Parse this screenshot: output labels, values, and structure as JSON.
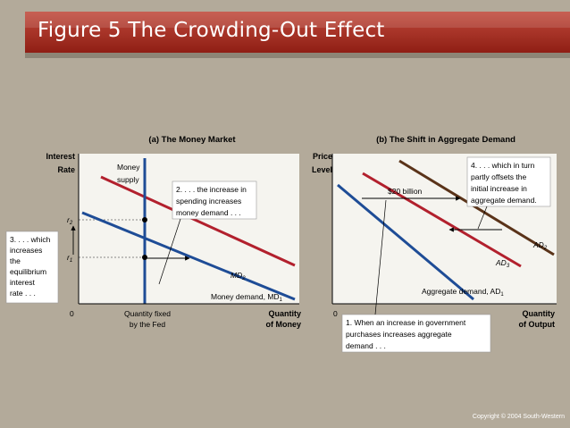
{
  "slide": {
    "title": "Figure 5 The Crowding-Out Effect",
    "copyright": "Copyright © 2004 South-Western"
  },
  "panel_a": {
    "title": "(a) The Money Market",
    "y_label_line1": "Interest",
    "y_label_line2": "Rate",
    "x_label_line1": "Quantity",
    "x_label_line2": "of Money",
    "origin": "0",
    "r2": "r",
    "r2_sub": "2",
    "r1": "r",
    "r1_sub": "1",
    "money_supply_line1": "Money",
    "money_supply_line2": "supply",
    "quantity_fixed_line1": "Quantity fixed",
    "quantity_fixed_line2": "by the Fed",
    "md1_label": "Money demand, MD",
    "md1_sub": "1",
    "md2_label": "MD",
    "md2_sub": "2",
    "callout2_lines": [
      "2. . . . the increase in",
      "spending increases",
      "money demand . . ."
    ],
    "callout3_lines": [
      "3. . . . which",
      "increases",
      "the",
      "equilibrium",
      "interest",
      "rate . . ."
    ],
    "colors": {
      "money_supply": "#1e4c96",
      "md1": "#1e4c96",
      "md2": "#b2202d"
    }
  },
  "panel_b": {
    "title": "(b) The Shift in Aggregate Demand",
    "y_label_line1": "Price",
    "y_label_line2": "Level",
    "x_label_line1": "Quantity",
    "x_label_line2": "of Output",
    "origin": "0",
    "twenty_billion": "$20 billion",
    "ad1_label": "Aggregate demand, AD",
    "ad1_sub": "1",
    "ad2_label": "AD",
    "ad2_sub": "2",
    "ad3_label": "AD",
    "ad3_sub": "3",
    "callout1_lines": [
      "1. When an increase in government",
      "purchases increases aggregate",
      "demand . . ."
    ],
    "callout4_lines": [
      "4. . . . which in turn",
      "partly offsets the",
      "initial increase in",
      "aggregate demand."
    ],
    "colors": {
      "ad1": "#1e4c96",
      "ad2": "#5a3319",
      "ad3": "#b2202d"
    }
  }
}
